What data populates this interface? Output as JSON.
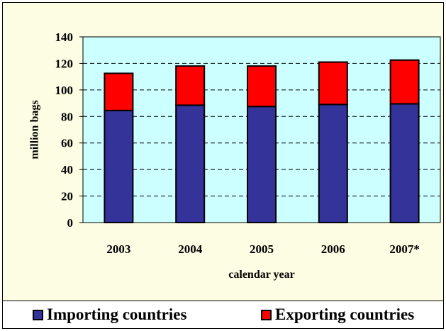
{
  "colors": {
    "importing": "#333399",
    "exporting": "#ff0000",
    "plot_background": "#ccffff",
    "outer_background": "#fdfde3"
  },
  "chart_data": {
    "type": "bar",
    "stacked": true,
    "categories": [
      "2003",
      "2004",
      "2005",
      "2006",
      "2007*"
    ],
    "series": [
      {
        "name": "Importing countries",
        "values": [
          84.5,
          88.5,
          87.5,
          89,
          89.5
        ]
      },
      {
        "name": "Exporting countries",
        "values": [
          28,
          29.5,
          30.5,
          32,
          33
        ]
      }
    ],
    "xlabel": "calendar year",
    "ylabel": "million bags",
    "ylim": [
      0,
      140
    ],
    "yticks": [
      0,
      20,
      40,
      60,
      80,
      100,
      120,
      140
    ],
    "grid": "horizontal dashed",
    "legend_position": "bottom"
  }
}
